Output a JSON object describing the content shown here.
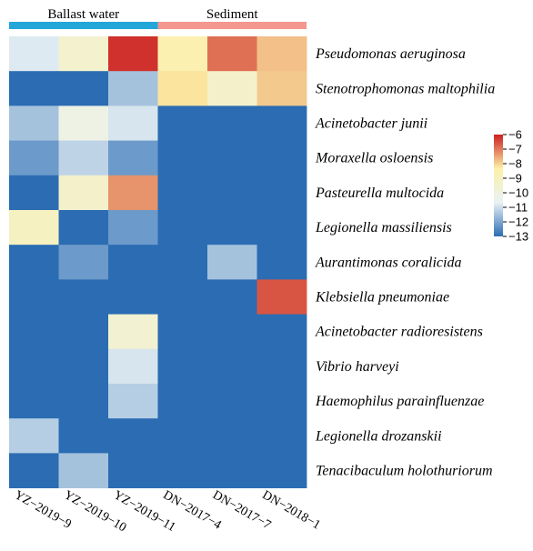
{
  "chart_data": {
    "type": "heatmap",
    "groups": [
      {
        "label": "Ballast water",
        "color": "#22a7d8",
        "span": [
          0,
          2
        ]
      },
      {
        "label": "Sediment",
        "color": "#f4978e",
        "span": [
          3,
          5
        ]
      }
    ],
    "columns": [
      "YZ−2019−9",
      "YZ−2019−10",
      "YZ−2019−11",
      "DN−2017−4",
      "DN−2017−7",
      "DN−2018−1"
    ],
    "rows": [
      "Pseudomonas aeruginosa",
      "Stenotrophomonas maltophilia",
      "Acinetobacter junii",
      "Moraxella osloensis",
      "Pasteurella multocida",
      "Legionella massiliensis",
      "Aurantimonas coralicida",
      "Klebsiella pneumoniae",
      "Acinetobacter radioresistens",
      "Vibrio harveyi",
      "Haemophilus parainfluenzae",
      "Legionella drozanskii",
      "Tenacibaculum holothuriorum"
    ],
    "values": [
      [
        -10.8,
        -9.5,
        -6.2,
        -8.6,
        -6.9,
        -7.8
      ],
      [
        -13,
        -13,
        -11.5,
        -8.2,
        -9.4,
        -7.9
      ],
      [
        -11.5,
        -10.2,
        -10.9,
        -13,
        -13,
        -13
      ],
      [
        -12.2,
        -11.2,
        -12.2,
        -13,
        -13,
        -13
      ],
      [
        -13,
        -9.4,
        -7.3,
        -13,
        -13,
        -13
      ],
      [
        -9.1,
        -13,
        -12.2,
        -13,
        -13,
        -13
      ],
      [
        -13,
        -12.2,
        -13,
        -13,
        -11.5,
        -13
      ],
      [
        -13,
        -13,
        -13,
        -13,
        -13,
        -6.6
      ],
      [
        -13,
        -13,
        -9.6,
        -13,
        -13,
        -13
      ],
      [
        -13,
        -13,
        -10.9,
        -13,
        -13,
        -13
      ],
      [
        -13,
        -13,
        -11.3,
        -13,
        -13,
        -13
      ],
      [
        -11.3,
        -13,
        -13,
        -13,
        -13,
        -13
      ],
      [
        -13,
        -11.5,
        -13,
        -13,
        -13,
        -13
      ]
    ],
    "colorbar": {
      "range": [
        -13,
        -6
      ],
      "ticks": [
        -6,
        -7,
        -8,
        -9,
        -10,
        -11,
        -12,
        -13
      ],
      "tick_labels": [
        "−6",
        "−7",
        "−8",
        "−9",
        "−10",
        "−11",
        "−12",
        "−13"
      ],
      "colors": [
        "#2b6cb3",
        "#e9f2f5",
        "#fdf0a6",
        "#cc1f21"
      ]
    }
  }
}
